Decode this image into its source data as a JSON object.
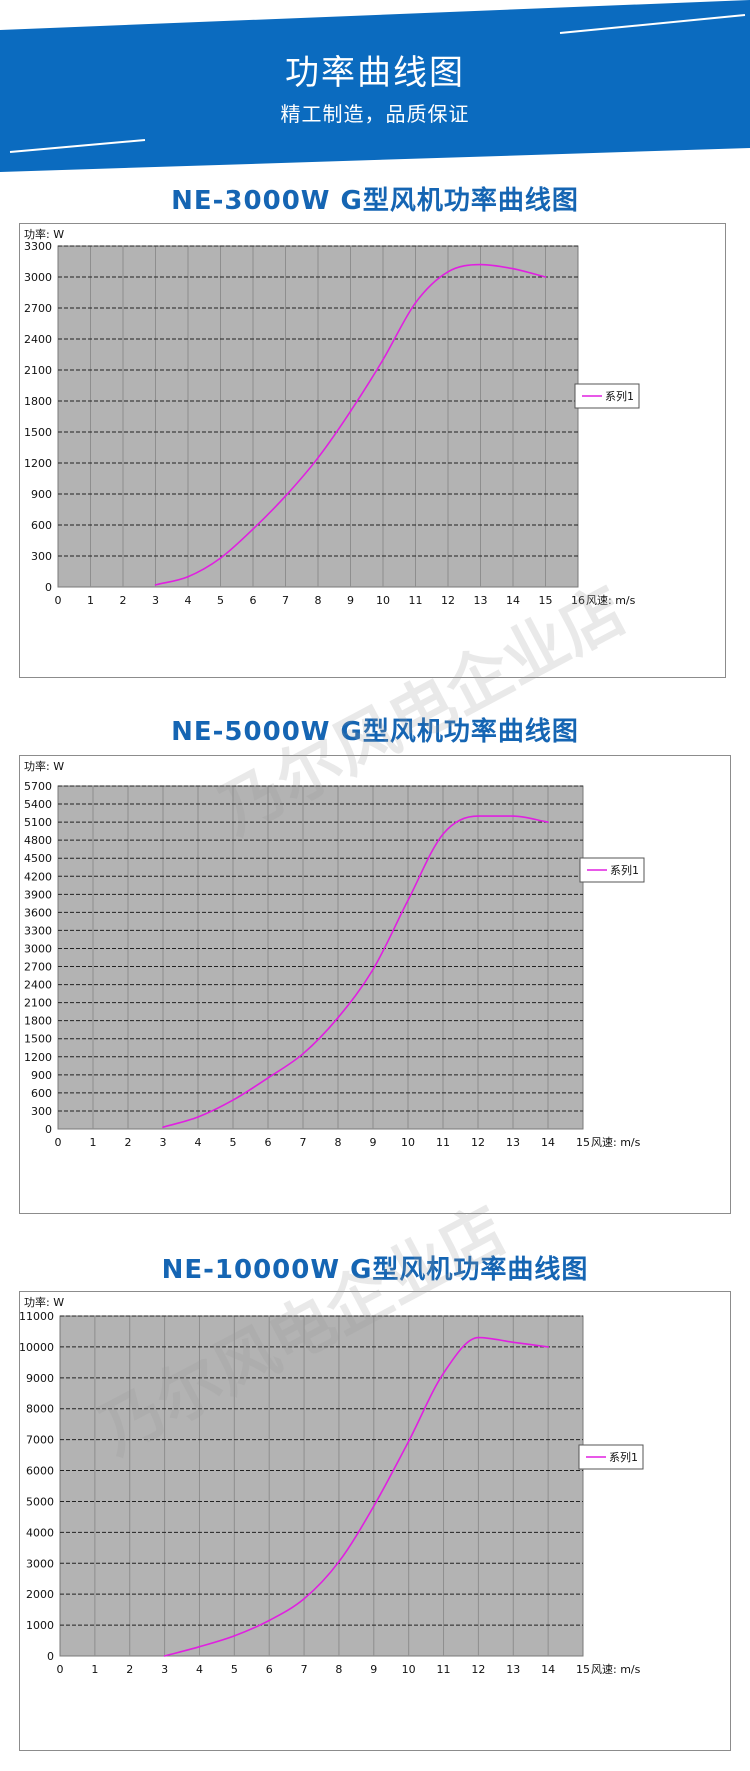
{
  "banner": {
    "title": "功率曲线图",
    "subtitle": "精工制造，品质保证",
    "color": "#0b6bbf"
  },
  "watermark_text": "乃尔风电企业店",
  "chart_data": [
    {
      "type": "line",
      "title": "NE-3000W G型风机功率曲线图",
      "ylabel": "功率: W",
      "xlabel": "风速: m/s",
      "xlim": [
        0,
        16
      ],
      "ylim": [
        0,
        3300
      ],
      "xticks": [
        "0",
        "1",
        "2",
        "3",
        "4",
        "5",
        "6",
        "7",
        "8",
        "9",
        "10",
        "11",
        "12",
        "13",
        "14",
        "15",
        "16"
      ],
      "yticks": [
        "0",
        "300",
        "600",
        "900",
        "1200",
        "1500",
        "1800",
        "2100",
        "2400",
        "2700",
        "3000",
        "3300"
      ],
      "legend": "right",
      "grid": true,
      "series": [
        {
          "name": "系列1",
          "color": "#e020e0",
          "x": [
            3,
            4,
            5,
            6,
            7,
            8,
            9,
            10,
            11,
            12,
            13,
            14,
            15
          ],
          "y": [
            20,
            100,
            280,
            560,
            880,
            1250,
            1700,
            2200,
            2750,
            3050,
            3120,
            3080,
            3000
          ]
        }
      ]
    },
    {
      "type": "line",
      "title": "NE-5000W G型风机功率曲线图",
      "ylabel": "功率: W",
      "xlabel": "风速: m/s",
      "xlim": [
        0,
        15
      ],
      "ylim": [
        0,
        5700
      ],
      "xticks": [
        "0",
        "1",
        "2",
        "3",
        "4",
        "5",
        "6",
        "7",
        "8",
        "9",
        "10",
        "11",
        "12",
        "13",
        "14",
        "15"
      ],
      "yticks": [
        "0",
        "300",
        "600",
        "900",
        "1200",
        "1500",
        "1800",
        "2100",
        "2400",
        "2700",
        "3000",
        "3300",
        "3600",
        "3900",
        "4200",
        "4500",
        "4800",
        "5100",
        "5400",
        "5700"
      ],
      "legend": "right",
      "grid": true,
      "series": [
        {
          "name": "系列1",
          "color": "#e020e0",
          "x": [
            3,
            4,
            5,
            6,
            7,
            8,
            9,
            10,
            11,
            12,
            13,
            14
          ],
          "y": [
            30,
            200,
            480,
            850,
            1250,
            1850,
            2650,
            3800,
            4900,
            5200,
            5200,
            5100
          ]
        }
      ]
    },
    {
      "type": "line",
      "title": "NE-10000W G型风机功率曲线图",
      "ylabel": "功率: W",
      "xlabel": "风速: m/s",
      "xlim": [
        0,
        15
      ],
      "ylim": [
        0,
        11000
      ],
      "xticks": [
        "0",
        "1",
        "2",
        "3",
        "4",
        "5",
        "6",
        "7",
        "8",
        "9",
        "10",
        "11",
        "12",
        "13",
        "14",
        "15"
      ],
      "yticks": [
        "0",
        "1000",
        "2000",
        "3000",
        "4000",
        "5000",
        "6000",
        "7000",
        "8000",
        "9000",
        "10000",
        "11000"
      ],
      "legend": "right",
      "grid": true,
      "series": [
        {
          "name": "系列1",
          "color": "#e020e0",
          "x": [
            3,
            4,
            5,
            6,
            7,
            8,
            9,
            10,
            11,
            12,
            13,
            14
          ],
          "y": [
            0,
            300,
            650,
            1150,
            1850,
            3050,
            4850,
            6950,
            9150,
            10300,
            10150,
            10000
          ]
        }
      ]
    }
  ]
}
